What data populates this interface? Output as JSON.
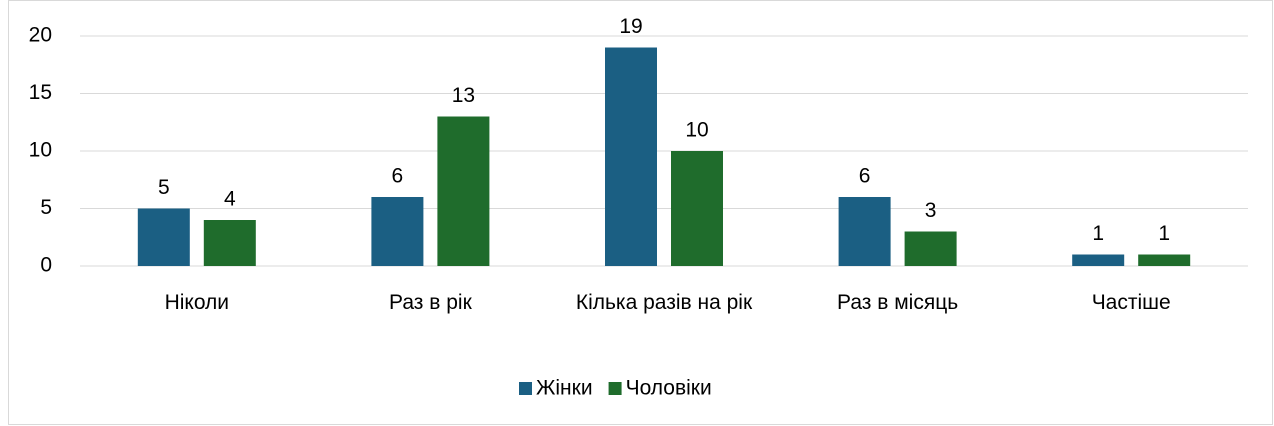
{
  "chart_data": {
    "type": "bar",
    "categories": [
      "Ніколи",
      "Раз в рік",
      "Кілька разів на рік",
      "Раз в місяць",
      "Частіше"
    ],
    "series": [
      {
        "name": "Жінки",
        "color": "#1b5f83",
        "values": [
          5,
          6,
          19,
          6,
          1
        ]
      },
      {
        "name": "Чоловіки",
        "color": "#1f6c2c",
        "values": [
          4,
          13,
          10,
          3,
          1
        ]
      }
    ],
    "ylim": [
      0,
      20
    ],
    "yticks": [
      0,
      5,
      10,
      15,
      20
    ],
    "grid": true,
    "legend": "bottom"
  }
}
